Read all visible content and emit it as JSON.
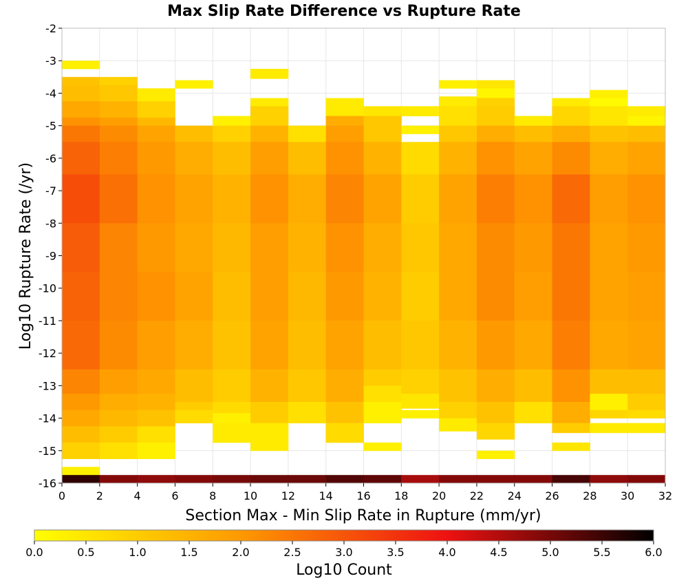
{
  "chart_data": {
    "type": "heatmap",
    "title": "Max Slip Rate Difference vs Rupture Rate",
    "xlabel": "Section Max - Min Slip Rate in Rupture (mm/yr)",
    "ylabel": "Log10 Rupture Rate (/yr)",
    "xlim": [
      0,
      32
    ],
    "ylim": [
      -16,
      -2
    ],
    "x_ticks": [
      "0",
      "2",
      "4",
      "6",
      "8",
      "10",
      "12",
      "14",
      "16",
      "18",
      "20",
      "22",
      "24",
      "26",
      "28",
      "30",
      "32"
    ],
    "y_ticks": [
      "-2",
      "-3",
      "-4",
      "-5",
      "-6",
      "-7",
      "-8",
      "-9",
      "-10",
      "-11",
      "-12",
      "-13",
      "-14",
      "-15",
      "-16"
    ],
    "x_bin_width": 2,
    "y_bin_width": 0.25,
    "colorbar": {
      "label": "Log10 Count",
      "range": [
        0,
        6
      ],
      "ticks": [
        "0.0",
        "0.5",
        "1.0",
        "1.5",
        "2.0",
        "2.5",
        "3.0",
        "3.5",
        "4.0",
        "4.5",
        "5.0",
        "5.5",
        "6.0"
      ],
      "colors": [
        "#ffff00",
        "#ff9900",
        "#ee1111",
        "#000000"
      ]
    },
    "grid": true,
    "columns": [
      {
        "x_start": 0,
        "cells": [
          [
            -3.25,
            -3.0,
            0.3
          ],
          [
            -3.75,
            -3.5,
            1.2
          ],
          [
            -4.25,
            -3.75,
            1.3
          ],
          [
            -4.75,
            -4.25,
            1.7
          ],
          [
            -5.0,
            -4.75,
            2.1
          ],
          [
            -5.5,
            -5.0,
            2.5
          ],
          [
            -6.5,
            -5.5,
            2.8
          ],
          [
            -8.0,
            -6.5,
            3.1
          ],
          [
            -9.5,
            -8.0,
            2.9
          ],
          [
            -11.0,
            -9.5,
            2.8
          ],
          [
            -12.5,
            -11.0,
            2.7
          ],
          [
            -13.25,
            -12.5,
            2.3
          ],
          [
            -13.75,
            -13.25,
            2.0
          ],
          [
            -14.25,
            -13.75,
            1.7
          ],
          [
            -14.75,
            -14.25,
            1.3
          ],
          [
            -15.25,
            -14.75,
            0.9
          ],
          [
            -15.75,
            -15.5,
            0.3
          ],
          [
            -16.0,
            -15.75,
            5.6
          ]
        ]
      },
      {
        "x_start": 2,
        "cells": [
          [
            -3.75,
            -3.5,
            0.9
          ],
          [
            -4.25,
            -3.75,
            1.1
          ],
          [
            -4.75,
            -4.25,
            1.5
          ],
          [
            -5.0,
            -4.75,
            1.9
          ],
          [
            -5.5,
            -5.0,
            2.2
          ],
          [
            -6.5,
            -5.5,
            2.4
          ],
          [
            -8.0,
            -6.5,
            2.6
          ],
          [
            -9.5,
            -8.0,
            2.3
          ],
          [
            -11.0,
            -9.5,
            2.3
          ],
          [
            -12.5,
            -11.0,
            2.2
          ],
          [
            -13.25,
            -12.5,
            1.9
          ],
          [
            -13.75,
            -13.25,
            1.6
          ],
          [
            -14.25,
            -13.75,
            1.4
          ],
          [
            -14.75,
            -14.25,
            1.0
          ],
          [
            -15.25,
            -14.75,
            0.6
          ],
          [
            -16.0,
            -15.75,
            4.9
          ]
        ]
      },
      {
        "x_start": 4,
        "cells": [
          [
            -4.25,
            -3.85,
            0.4
          ],
          [
            -4.75,
            -4.25,
            0.9
          ],
          [
            -5.0,
            -4.75,
            1.4
          ],
          [
            -5.5,
            -5.0,
            1.8
          ],
          [
            -6.5,
            -5.5,
            2.0
          ],
          [
            -8.0,
            -6.5,
            2.1
          ],
          [
            -9.5,
            -8.0,
            2.0
          ],
          [
            -11.0,
            -9.5,
            2.1
          ],
          [
            -12.5,
            -11.0,
            1.9
          ],
          [
            -13.25,
            -12.5,
            1.7
          ],
          [
            -13.75,
            -13.25,
            1.5
          ],
          [
            -14.25,
            -13.75,
            1.2
          ],
          [
            -14.75,
            -14.25,
            0.6
          ],
          [
            -15.25,
            -14.75,
            0.3
          ],
          [
            -16.0,
            -15.75,
            4.8
          ]
        ]
      },
      {
        "x_start": 6,
        "cells": [
          [
            -3.85,
            -3.6,
            0.3
          ],
          [
            -5.5,
            -5.0,
            1.3
          ],
          [
            -6.5,
            -5.5,
            1.6
          ],
          [
            -8.0,
            -6.5,
            1.8
          ],
          [
            -9.5,
            -8.0,
            1.7
          ],
          [
            -11.0,
            -9.5,
            1.8
          ],
          [
            -12.5,
            -11.0,
            1.6
          ],
          [
            -13.5,
            -12.5,
            1.3
          ],
          [
            -13.75,
            -13.5,
            1.0
          ],
          [
            -14.15,
            -13.75,
            0.7
          ],
          [
            -16.0,
            -15.75,
            4.9
          ]
        ]
      },
      {
        "x_start": 8,
        "cells": [
          [
            -5.0,
            -4.7,
            0.3
          ],
          [
            -5.5,
            -5.0,
            0.9
          ],
          [
            -6.5,
            -5.5,
            1.3
          ],
          [
            -8.0,
            -6.5,
            1.5
          ],
          [
            -9.5,
            -8.0,
            1.4
          ],
          [
            -11.0,
            -9.5,
            1.3
          ],
          [
            -12.5,
            -11.0,
            1.2
          ],
          [
            -13.5,
            -12.5,
            1.0
          ],
          [
            -13.85,
            -13.5,
            0.7
          ],
          [
            -14.15,
            -13.85,
            0.3
          ],
          [
            -14.75,
            -14.15,
            0.4
          ],
          [
            -16.0,
            -15.75,
            5.0
          ]
        ]
      },
      {
        "x_start": 10,
        "cells": [
          [
            -3.55,
            -3.25,
            0.4
          ],
          [
            -4.4,
            -4.15,
            0.4
          ],
          [
            -5.0,
            -4.4,
            0.9
          ],
          [
            -5.5,
            -5.0,
            1.5
          ],
          [
            -6.5,
            -5.5,
            1.9
          ],
          [
            -8.0,
            -6.5,
            2.1
          ],
          [
            -9.5,
            -8.0,
            1.9
          ],
          [
            -11.0,
            -9.5,
            1.9
          ],
          [
            -12.5,
            -11.0,
            1.8
          ],
          [
            -13.5,
            -12.5,
            1.5
          ],
          [
            -14.15,
            -13.5,
            1.0
          ],
          [
            -15.0,
            -14.15,
            0.4
          ],
          [
            -16.0,
            -15.75,
            5.1
          ]
        ]
      },
      {
        "x_start": 12,
        "cells": [
          [
            -5.5,
            -5.0,
            0.6
          ],
          [
            -6.5,
            -5.5,
            1.3
          ],
          [
            -8.0,
            -6.5,
            1.6
          ],
          [
            -9.5,
            -8.0,
            1.5
          ],
          [
            -11.0,
            -9.5,
            1.4
          ],
          [
            -12.5,
            -11.0,
            1.3
          ],
          [
            -13.5,
            -12.5,
            1.1
          ],
          [
            -14.15,
            -13.5,
            0.6
          ],
          [
            -16.0,
            -15.75,
            5.1
          ]
        ]
      },
      {
        "x_start": 14,
        "cells": [
          [
            -4.7,
            -4.15,
            0.4
          ],
          [
            -5.0,
            -4.7,
            1.6
          ],
          [
            -5.5,
            -5.0,
            1.9
          ],
          [
            -6.5,
            -5.5,
            2.1
          ],
          [
            -8.0,
            -6.5,
            2.3
          ],
          [
            -9.5,
            -8.0,
            2.1
          ],
          [
            -11.0,
            -9.5,
            2.0
          ],
          [
            -12.5,
            -11.0,
            1.8
          ],
          [
            -13.5,
            -12.5,
            1.6
          ],
          [
            -14.15,
            -13.5,
            1.2
          ],
          [
            -14.75,
            -14.15,
            0.7
          ],
          [
            -16.0,
            -15.75,
            5.3
          ]
        ]
      },
      {
        "x_start": 16,
        "cells": [
          [
            -4.7,
            -4.4,
            0.5
          ],
          [
            -5.5,
            -4.7,
            1.1
          ],
          [
            -6.5,
            -5.5,
            1.5
          ],
          [
            -8.0,
            -6.5,
            1.8
          ],
          [
            -9.5,
            -8.0,
            1.6
          ],
          [
            -11.0,
            -9.5,
            1.5
          ],
          [
            -12.5,
            -11.0,
            1.3
          ],
          [
            -13.0,
            -12.5,
            1.0
          ],
          [
            -13.5,
            -13.0,
            0.6
          ],
          [
            -14.15,
            -13.5,
            0.3
          ],
          [
            -15.0,
            -14.75,
            0.3
          ],
          [
            -16.0,
            -15.75,
            5.2
          ]
        ]
      },
      {
        "x_start": 18,
        "cells": [
          [
            -4.7,
            -4.4,
            0.4
          ],
          [
            -5.25,
            -5.0,
            0.3
          ],
          [
            -6.5,
            -5.5,
            0.7
          ],
          [
            -8.0,
            -6.5,
            1.0
          ],
          [
            -9.5,
            -8.0,
            1.1
          ],
          [
            -11.0,
            -9.5,
            1.0
          ],
          [
            -12.5,
            -11.0,
            1.1
          ],
          [
            -13.25,
            -12.5,
            0.9
          ],
          [
            -13.7,
            -13.25,
            0.5
          ],
          [
            -14.0,
            -13.75,
            0.3
          ],
          [
            -16.0,
            -15.75,
            4.6
          ]
        ]
      },
      {
        "x_start": 20,
        "cells": [
          [
            -3.85,
            -3.6,
            0.3
          ],
          [
            -4.4,
            -4.1,
            0.4
          ],
          [
            -5.0,
            -4.4,
            0.6
          ],
          [
            -5.5,
            -5.0,
            1.1
          ],
          [
            -6.5,
            -5.5,
            1.5
          ],
          [
            -8.0,
            -6.5,
            1.8
          ],
          [
            -9.5,
            -8.0,
            1.7
          ],
          [
            -11.0,
            -9.5,
            1.7
          ],
          [
            -12.5,
            -11.0,
            1.5
          ],
          [
            -13.5,
            -12.5,
            1.2
          ],
          [
            -14.0,
            -13.5,
            0.9
          ],
          [
            -14.4,
            -14.0,
            0.4
          ],
          [
            -16.0,
            -15.75,
            4.9
          ]
        ]
      },
      {
        "x_start": 22,
        "cells": [
          [
            -3.85,
            -3.6,
            0.5
          ],
          [
            -4.15,
            -3.85,
            0.2
          ],
          [
            -4.4,
            -4.15,
            0.9
          ],
          [
            -5.0,
            -4.4,
            1.0
          ],
          [
            -5.5,
            -5.0,
            1.6
          ],
          [
            -6.5,
            -5.5,
            2.1
          ],
          [
            -8.0,
            -6.5,
            2.4
          ],
          [
            -9.5,
            -8.0,
            2.2
          ],
          [
            -11.0,
            -9.5,
            2.2
          ],
          [
            -12.5,
            -11.0,
            2.0
          ],
          [
            -13.5,
            -12.5,
            1.6
          ],
          [
            -14.15,
            -13.5,
            1.2
          ],
          [
            -14.65,
            -14.15,
            0.8
          ],
          [
            -15.25,
            -15.0,
            0.3
          ],
          [
            -16.0,
            -15.75,
            4.9
          ]
        ]
      },
      {
        "x_start": 24,
        "cells": [
          [
            -5.0,
            -4.7,
            0.4
          ],
          [
            -5.5,
            -5.0,
            1.3
          ],
          [
            -6.5,
            -5.5,
            1.8
          ],
          [
            -8.0,
            -6.5,
            2.1
          ],
          [
            -9.5,
            -8.0,
            2.0
          ],
          [
            -11.0,
            -9.5,
            1.9
          ],
          [
            -12.5,
            -11.0,
            1.7
          ],
          [
            -13.5,
            -12.5,
            1.3
          ],
          [
            -14.15,
            -13.5,
            0.6
          ],
          [
            -16.0,
            -15.75,
            4.9
          ]
        ]
      },
      {
        "x_start": 26,
        "cells": [
          [
            -4.4,
            -4.15,
            0.4
          ],
          [
            -5.0,
            -4.4,
            0.8
          ],
          [
            -5.5,
            -5.0,
            1.6
          ],
          [
            -6.5,
            -5.5,
            2.2
          ],
          [
            -8.0,
            -6.5,
            2.7
          ],
          [
            -9.5,
            -8.0,
            2.5
          ],
          [
            -11.0,
            -9.5,
            2.5
          ],
          [
            -12.5,
            -11.0,
            2.4
          ],
          [
            -13.5,
            -12.5,
            2.1
          ],
          [
            -14.15,
            -13.5,
            1.6
          ],
          [
            -14.45,
            -14.15,
            1.0
          ],
          [
            -15.0,
            -14.75,
            0.5
          ],
          [
            -16.0,
            -15.75,
            5.4
          ]
        ]
      },
      {
        "x_start": 28,
        "cells": [
          [
            -4.15,
            -3.9,
            0.3
          ],
          [
            -4.4,
            -4.15,
            0.1
          ],
          [
            -5.0,
            -4.4,
            0.5
          ],
          [
            -5.5,
            -5.0,
            1.2
          ],
          [
            -6.5,
            -5.5,
            1.6
          ],
          [
            -8.0,
            -6.5,
            1.9
          ],
          [
            -9.5,
            -8.0,
            1.8
          ],
          [
            -11.0,
            -9.5,
            1.8
          ],
          [
            -12.5,
            -11.0,
            1.7
          ],
          [
            -13.25,
            -12.5,
            1.3
          ],
          [
            -13.75,
            -13.25,
            0.3
          ],
          [
            -14.0,
            -13.75,
            0.8
          ],
          [
            -14.45,
            -14.15,
            0.4
          ],
          [
            -16.0,
            -15.75,
            4.8
          ]
        ]
      },
      {
        "x_start": 30,
        "cells": [
          [
            -4.7,
            -4.4,
            0.4
          ],
          [
            -5.0,
            -4.7,
            0.2
          ],
          [
            -5.5,
            -5.0,
            1.3
          ],
          [
            -6.5,
            -5.5,
            1.8
          ],
          [
            -8.0,
            -6.5,
            2.1
          ],
          [
            -9.5,
            -8.0,
            2.0
          ],
          [
            -11.0,
            -9.5,
            1.9
          ],
          [
            -12.5,
            -11.0,
            1.8
          ],
          [
            -13.25,
            -12.5,
            1.3
          ],
          [
            -13.75,
            -13.25,
            1.0
          ],
          [
            -14.0,
            -13.75,
            0.7
          ],
          [
            -14.45,
            -14.15,
            0.4
          ],
          [
            -16.0,
            -15.75,
            4.9
          ]
        ]
      }
    ]
  }
}
